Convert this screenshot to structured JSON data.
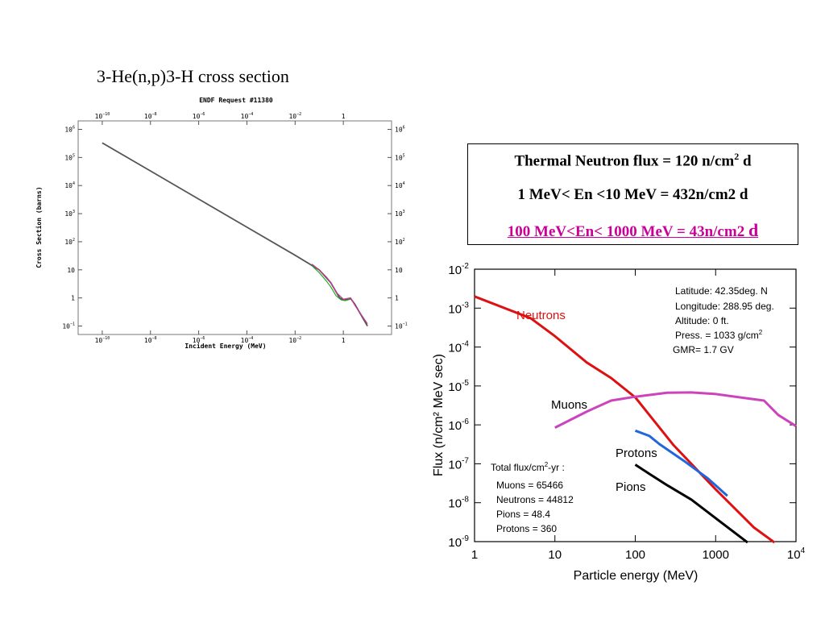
{
  "left_title": "3-He(n,p)3-H cross section",
  "info_box": {
    "line1_main": "Thermal Neutron flux = 120 n/cm",
    "line1_sup": "2",
    "line1_tail": " d",
    "line2": "1 MeV< En <10 MeV = 432n/cm2 d",
    "line3_main": "100 MeV<En< 1000 MeV = 43n/cm2 ",
    "line3_tail": "d",
    "line3_color": "#cc0099"
  },
  "chart_data": [
    {
      "type": "line",
      "title": "ENDF Request #11380",
      "xlabel": "Incident Energy (MeV)",
      "ylabel": "Cross Section (barns)",
      "x_scale": "log",
      "y_scale": "log",
      "xlim": [
        1e-11,
        100
      ],
      "ylim": [
        0.05,
        2000000
      ],
      "x_ticks": [
        {
          "v": 1e-10,
          "b": "10",
          "e": "−10"
        },
        {
          "v": 1e-08,
          "b": "10",
          "e": "−8"
        },
        {
          "v": 1e-06,
          "b": "10",
          "e": "−6"
        },
        {
          "v": 0.0001,
          "b": "10",
          "e": "−4"
        },
        {
          "v": 0.01,
          "b": "10",
          "e": "−2"
        },
        {
          "v": 1,
          "b": "1",
          "e": ""
        }
      ],
      "y_ticks": [
        {
          "v": 0.1,
          "b": "10",
          "e": "−1"
        },
        {
          "v": 1,
          "b": "1",
          "e": ""
        },
        {
          "v": 10,
          "b": "10",
          "e": ""
        },
        {
          "v": 100,
          "b": "10",
          "e": "2"
        },
        {
          "v": 1000,
          "b": "10",
          "e": "3"
        },
        {
          "v": 10000,
          "b": "10",
          "e": "4"
        },
        {
          "v": 100000,
          "b": "10",
          "e": "5"
        },
        {
          "v": 1000000,
          "b": "10",
          "e": "6"
        }
      ],
      "series": [
        {
          "color": "#555555",
          "points": [
            [
              1e-10,
              330000
            ],
            [
              1e-08,
              33000
            ],
            [
              1e-06,
              3300
            ],
            [
              0.0001,
              330
            ],
            [
              0.01,
              33
            ],
            [
              0.1,
              10
            ],
            [
              0.3,
              3.5
            ],
            [
              0.7,
              1.0
            ],
            [
              1.0,
              0.85
            ],
            [
              2.0,
              0.95
            ],
            [
              3.0,
              0.6
            ],
            [
              10,
              0.1
            ]
          ]
        },
        {
          "color": "#22aa22",
          "points": [
            [
              0.05,
              14
            ],
            [
              0.1,
              8
            ],
            [
              0.2,
              4
            ],
            [
              0.3,
              2.5
            ],
            [
              0.5,
              1.2
            ],
            [
              0.8,
              0.85
            ],
            [
              1.2,
              0.8
            ],
            [
              2.0,
              0.9
            ]
          ]
        },
        {
          "color": "#cc3399",
          "points": [
            [
              0.05,
              16
            ],
            [
              0.1,
              10
            ],
            [
              0.2,
              5.5
            ],
            [
              0.3,
              3.6
            ],
            [
              0.5,
              1.6
            ],
            [
              1.0,
              0.9
            ],
            [
              2.0,
              1.0
            ],
            [
              3.0,
              0.55
            ],
            [
              10,
              0.12
            ]
          ]
        }
      ]
    },
    {
      "type": "line",
      "xlabel": "Particle energy (MeV)",
      "ylabel": "Flux (n/cm² MeV sec)",
      "x_scale": "log",
      "y_scale": "log",
      "xlim": [
        1,
        10000
      ],
      "ylim": [
        1e-09,
        0.01
      ],
      "x_ticks": [
        {
          "v": 1,
          "b": "1",
          "e": ""
        },
        {
          "v": 10,
          "b": "10",
          "e": ""
        },
        {
          "v": 100,
          "b": "100",
          "e": ""
        },
        {
          "v": 1000,
          "b": "1000",
          "e": ""
        },
        {
          "v": 10000,
          "b": "10",
          "e": "4"
        }
      ],
      "y_ticks": [
        {
          "v": 1e-09,
          "b": "10",
          "e": "-9"
        },
        {
          "v": 1e-08,
          "b": "10",
          "e": "-8"
        },
        {
          "v": 1e-07,
          "b": "10",
          "e": "-7"
        },
        {
          "v": 1e-06,
          "b": "10",
          "e": "-6"
        },
        {
          "v": 1e-05,
          "b": "10",
          "e": "-5"
        },
        {
          "v": 0.0001,
          "b": "10",
          "e": "-4"
        },
        {
          "v": 0.001,
          "b": "10",
          "e": "-3"
        },
        {
          "v": 0.01,
          "b": "10",
          "e": "-2"
        }
      ],
      "series": [
        {
          "name": "Neutrons",
          "color": "#dd1111",
          "points": [
            [
              1,
              0.002
            ],
            [
              5,
              0.00055
            ],
            [
              10,
              0.00019
            ],
            [
              25,
              4e-05
            ],
            [
              50,
              1.6e-05
            ],
            [
              100,
              5.1e-06
            ],
            [
              300,
              3e-07
            ],
            [
              1000,
              2.2e-08
            ],
            [
              3000,
              2.3e-09
            ],
            [
              5400,
              9.5e-10
            ]
          ]
        },
        {
          "name": "Muons",
          "color": "#cc44bb",
          "points": [
            [
              10,
              8.5e-07
            ],
            [
              25,
              2.2e-06
            ],
            [
              50,
              4.2e-06
            ],
            [
              100,
              5.3e-06
            ],
            [
              250,
              6.7e-06
            ],
            [
              500,
              6.8e-06
            ],
            [
              1000,
              6.2e-06
            ],
            [
              2000,
              5.1e-06
            ],
            [
              4000,
              4.2e-06
            ],
            [
              6000,
              1.8e-06
            ],
            [
              10000,
              9.3e-07
            ]
          ]
        },
        {
          "name": "Protons",
          "color": "#2266dd",
          "points": [
            [
              100,
              7.1e-07
            ],
            [
              150,
              5.2e-07
            ],
            [
              200,
              3.2e-07
            ],
            [
              400,
              1.2e-07
            ],
            [
              800,
              4.2e-08
            ],
            [
              1400,
              1.5e-08
            ]
          ]
        },
        {
          "name": "Pions",
          "color": "#000000",
          "points": [
            [
              100,
              9.5e-08
            ],
            [
              150,
              5.5e-08
            ],
            [
              250,
              2.8e-08
            ],
            [
              500,
              1.2e-08
            ],
            [
              1000,
              4e-09
            ],
            [
              2500,
              9.5e-10
            ]
          ]
        }
      ],
      "conditions": {
        "latitude": "Latitude: 42.35deg. N",
        "longitude": "Longitude: 288.95 deg.",
        "altitude": "Altitude: 0 ft.",
        "pressure_main": "Press. = 1033 g/cm",
        "pressure_sup": "2",
        "gmr": "GMR= 1.7 GV"
      },
      "totals": {
        "header_main": "Total flux/cm",
        "header_sup": "2",
        "header_tail": "-yr :",
        "muons": "Muons = 65466",
        "neutrons": "Neutrons = 44812",
        "pions": "Pions = 48.4",
        "protons": "Protons = 360"
      }
    }
  ]
}
